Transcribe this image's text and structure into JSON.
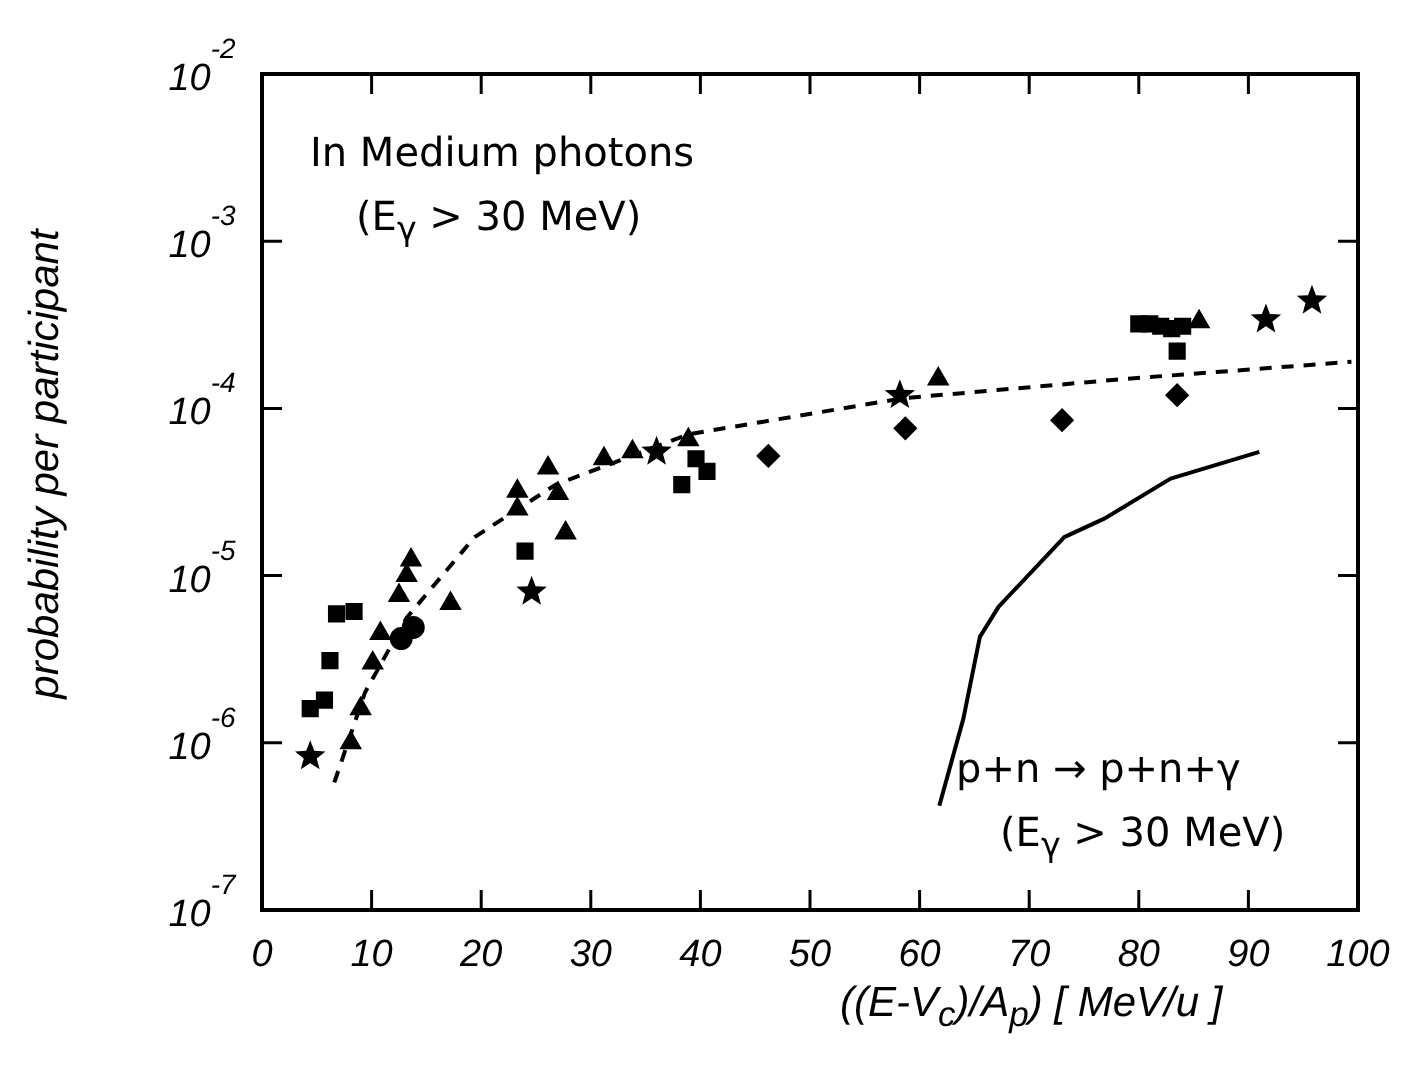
{
  "chart_data": {
    "type": "scatter",
    "xlabel": "((E-V$_{c}$)/A$_{p}$) [ MeV/u ]",
    "ylabel": "probability per participant",
    "annotations": [
      "In Medium photons",
      "(E$_{γ}$ > 30 MeV)",
      "p+n → p+n+γ",
      "(E$_{γ}$ > 30 MeV)"
    ],
    "log": "y",
    "grid": false,
    "legend": false,
    "xlim": [
      0,
      100
    ],
    "xticks": [
      0,
      10,
      20,
      30,
      40,
      50,
      60,
      70,
      80,
      90,
      100
    ],
    "ylim": [
      1e-07,
      0.01
    ],
    "yticks": [
      {
        "value": 1e-07,
        "label": "10$^{-7}$"
      },
      {
        "value": 1e-06,
        "label": "10$^{-6}$"
      },
      {
        "value": 1e-05,
        "label": "10$^{-5}$"
      },
      {
        "value": 0.0001,
        "label": "10$^{-4}$"
      },
      {
        "value": 0.001,
        "label": "10$^{-3}$"
      },
      {
        "value": 0.01,
        "label": "10$^{-2}$"
      }
    ],
    "series": [
      {
        "type": "scatter",
        "marker": "square",
        "color": "#000000",
        "x": [
          6.8,
          8.4,
          6.2,
          4.4,
          5.7,
          38.3,
          80,
          81,
          82,
          83,
          84
        ],
        "values": [
          5.9e-06,
          6.1e-06,
          3.1e-06,
          1.6e-06,
          1.8e-06,
          3.5e-05,
          0.00032,
          0.00032,
          0.00031,
          0.0003,
          0.00031
        ]
      },
      {
        "type": "scatter",
        "marker": "star",
        "color": "#000000",
        "x": [
          4.4,
          24.6,
          36.0,
          58.2,
          91.6,
          95.8
        ],
        "values": [
          8.3e-07,
          8e-06,
          5.5e-05,
          0.00012,
          0.00034,
          0.00044
        ]
      },
      {
        "type": "scatter",
        "marker": "triangle",
        "color": "#000000",
        "x": [
          8.1,
          31.2,
          38.9
        ],
        "values": [
          1e-06,
          5e-05,
          6.5e-05
        ]
      },
      {
        "type": "scatter",
        "marker": "triangle",
        "color": "#000000",
        "x": [
          9.0,
          10.1,
          10.8,
          12.5,
          13.2,
          13.6,
          17.2,
          23.3,
          23.3,
          26.1,
          27.0,
          27.7,
          33.8,
          61.7,
          85.5
        ],
        "values": [
          1.6e-06,
          3e-06,
          4.5e-06,
          7.6e-06,
          1e-05,
          1.24e-05,
          6.8e-06,
          3.2e-05,
          2.5e-05,
          4.4e-05,
          3.1e-05,
          1.8e-05,
          5.5e-05,
          0.00015,
          0.00033
        ]
      },
      {
        "type": "scatter",
        "marker": "square",
        "color": "#000000",
        "x": [
          24.0,
          39.6,
          40.6,
          83.5
        ],
        "values": [
          1.4e-05,
          5e-05,
          4.2e-05,
          0.00022
        ]
      },
      {
        "type": "scatter",
        "marker": "circle",
        "color": "#000000",
        "x": [
          12.7,
          13.8
        ],
        "values": [
          4.2e-06,
          4.9e-06
        ]
      },
      {
        "type": "scatter",
        "marker": "diamond",
        "color": "#000000",
        "x": [
          46.2,
          58.7,
          73.0,
          83.5
        ],
        "values": [
          5.2e-05,
          7.6e-05,
          8.5e-05,
          0.00012
        ]
      },
      {
        "type": "line",
        "line_style": "dashed",
        "color": "#000000",
        "x": [
          6.6,
          9.4,
          13.2,
          19.4,
          26.8,
          31.6,
          38.9,
          58.5,
          78.7,
          99.4
        ],
        "values": [
          5.8e-07,
          2e-06,
          5.6e-06,
          1.7e-05,
          3.5e-05,
          4.6e-05,
          7e-05,
          0.000115,
          0.00015,
          0.00019
        ]
      },
      {
        "type": "line",
        "line_style": "solid",
        "color": "#000000",
        "x": [
          61.8,
          64.0,
          65.5,
          67.2,
          73.2,
          76.9,
          82.9,
          91.0
        ],
        "values": [
          4.2e-07,
          1.4e-06,
          4.3e-06,
          6.5e-06,
          1.7e-05,
          2.2e-05,
          3.8e-05,
          5.5e-05
        ]
      }
    ]
  }
}
